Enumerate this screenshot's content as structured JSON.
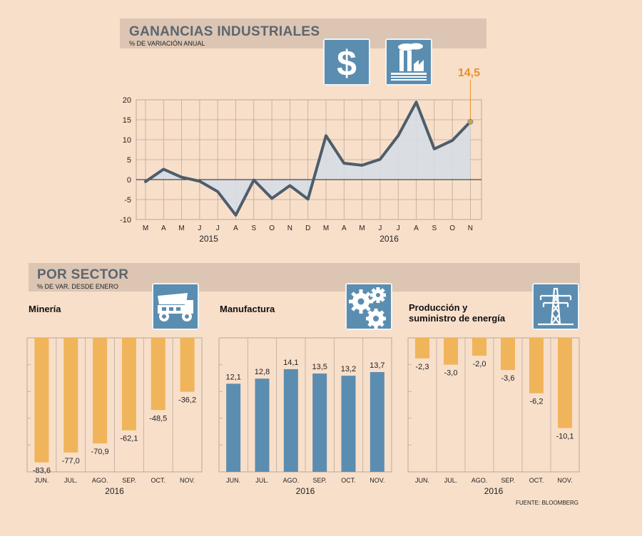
{
  "main_chart": {
    "title": "GANANCIAS INDUSTRIALES",
    "subtitle": "% DE VARIACIÓN ANUAL",
    "highlight_value": "14,5",
    "icons": [
      "dollar-icon",
      "factory-icon"
    ]
  },
  "sector_section": {
    "title": "POR SECTOR",
    "subtitle": "% DE VAR. DESDE ENERO"
  },
  "source": "FUENTE: BLOOMBERG",
  "colors": {
    "background": "#f8dfca",
    "band": "#dcc5b3",
    "line": "#4e5d6b",
    "area": "#d6dde4",
    "highlight": "#e8912c",
    "negative_bar": "#f0b45a",
    "positive_bar": "#5b8db0",
    "grid": "#b9a99c"
  },
  "chart_data": [
    {
      "type": "area",
      "title": "GANANCIAS INDUSTRIALES",
      "subtitle": "% DE VARIACIÓN ANUAL",
      "x": [
        "M",
        "A",
        "M",
        "J",
        "J",
        "A",
        "S",
        "O",
        "N",
        "D",
        "M",
        "A",
        "M",
        "J",
        "J",
        "A",
        "S",
        "O",
        "N"
      ],
      "year_labels": [
        {
          "label": "2015",
          "index": 3.5
        },
        {
          "label": "2016",
          "index": 13.5
        }
      ],
      "series": [
        {
          "name": "Ganancias industriales",
          "values": [
            -0.5,
            2.6,
            0.6,
            -0.4,
            -3.0,
            -8.9,
            -0.1,
            -4.7,
            -1.5,
            -4.9,
            11.0,
            4.1,
            3.6,
            5.1,
            11.0,
            19.4,
            7.7,
            9.8,
            14.5
          ]
        }
      ],
      "ylim": [
        -10,
        20
      ],
      "yticks": [
        -10,
        -5,
        0,
        5,
        10,
        15,
        20
      ],
      "annotation": "14,5"
    },
    {
      "type": "bar",
      "title": "Minería",
      "categories": [
        "JUN.",
        "JUL.",
        "AGO.",
        "SEP.",
        "OCT.",
        "NOV."
      ],
      "values": [
        -83.6,
        -77.0,
        -70.9,
        -62.1,
        -48.5,
        -36.2
      ],
      "labels": [
        "-83,6",
        "-77,0",
        "-70,9",
        "-62,1",
        "-48,5",
        "-36,2"
      ],
      "xlabel": "2016",
      "ylim": [
        -90,
        0
      ],
      "icon": "mining-truck-icon"
    },
    {
      "type": "bar",
      "title": "Manufactura",
      "categories": [
        "JUN.",
        "JUL.",
        "AGO.",
        "SEP.",
        "OCT.",
        "NOV."
      ],
      "values": [
        12.1,
        12.8,
        14.1,
        13.5,
        13.2,
        13.7
      ],
      "labels": [
        "12,1",
        "12,8",
        "14,1",
        "13,5",
        "13,2",
        "13,7"
      ],
      "xlabel": "2016",
      "ylim": [
        0,
        18.4
      ],
      "icon": "gears-icon"
    },
    {
      "type": "bar",
      "title": "Producción y suministro de energía",
      "title_lines": [
        "Producción y",
        "suministro de energía"
      ],
      "categories": [
        "JUN.",
        "JUL.",
        "AGO.",
        "SEP.",
        "OCT.",
        "NOV."
      ],
      "values": [
        -2.3,
        -3.0,
        -2.0,
        -3.6,
        -6.2,
        -10.1
      ],
      "labels": [
        "-2,3",
        "-3,0",
        "-2,0",
        "-3,6",
        "-6,2",
        "-10,1"
      ],
      "xlabel": "2016",
      "ylim": [
        -15,
        0
      ],
      "icon": "power-tower-icon"
    }
  ]
}
